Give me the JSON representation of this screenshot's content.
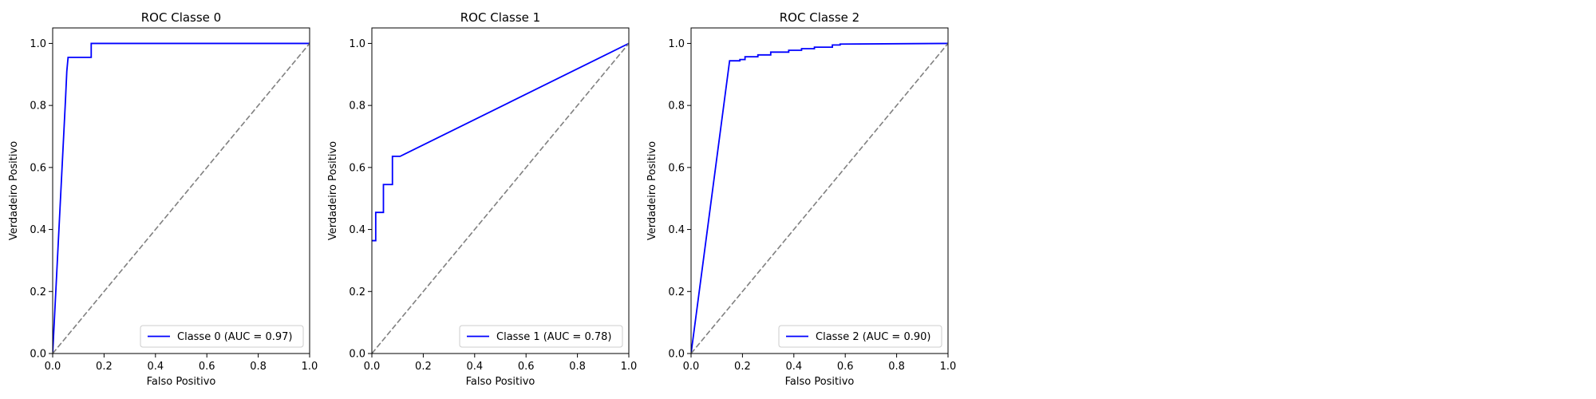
{
  "chart_data": [
    {
      "type": "line",
      "title": "ROC Classe 0",
      "xlabel": "Falso Positivo",
      "ylabel": "Verdadeiro Positivo",
      "xlim": [
        0,
        1
      ],
      "ylim": [
        0,
        1.05
      ],
      "xticks": [
        "0.0",
        "0.2",
        "0.4",
        "0.6",
        "0.8",
        "1.0"
      ],
      "yticks": [
        "0.0",
        "0.2",
        "0.4",
        "0.6",
        "0.8",
        "1.0"
      ],
      "grid": false,
      "legend_position": "lower-right",
      "series": [
        {
          "name": "Classe 0 (AUC = 0.97)",
          "color": "#0000ff",
          "style": "solid",
          "x": [
            0.0,
            0.05,
            0.05,
            0.055,
            0.055,
            0.06,
            0.06,
            0.15,
            0.15,
            1.0
          ],
          "y": [
            0.0,
            0.82,
            0.82,
            0.91,
            0.91,
            0.955,
            0.955,
            0.955,
            1.0,
            1.0
          ]
        },
        {
          "name": "",
          "color": "#808080",
          "style": "dashed",
          "x": [
            0.0,
            1.0
          ],
          "y": [
            0.0,
            1.0
          ]
        }
      ]
    },
    {
      "type": "line",
      "title": "ROC Classe 1",
      "xlabel": "Falso Positivo",
      "ylabel": "Verdadeiro Positivo",
      "xlim": [
        0,
        1
      ],
      "ylim": [
        0,
        1.05
      ],
      "xticks": [
        "0.0",
        "0.2",
        "0.4",
        "0.6",
        "0.8",
        "1.0"
      ],
      "yticks": [
        "0.0",
        "0.2",
        "0.4",
        "0.6",
        "0.8",
        "1.0"
      ],
      "grid": false,
      "legend_position": "lower-right",
      "series": [
        {
          "name": "Classe 1 (AUC = 0.78)",
          "color": "#0000ff",
          "style": "solid",
          "x": [
            0.0,
            0.015,
            0.015,
            0.045,
            0.045,
            0.08,
            0.08,
            0.11,
            1.0
          ],
          "y": [
            0.364,
            0.364,
            0.455,
            0.455,
            0.545,
            0.545,
            0.636,
            0.636,
            1.0
          ]
        },
        {
          "name": "",
          "color": "#808080",
          "style": "dashed",
          "x": [
            0.0,
            1.0
          ],
          "y": [
            0.0,
            1.0
          ]
        }
      ]
    },
    {
      "type": "line",
      "title": "ROC Classe 2",
      "xlabel": "Falso Positivo",
      "ylabel": "Verdadeiro Positivo",
      "xlim": [
        0,
        1
      ],
      "ylim": [
        0,
        1.05
      ],
      "xticks": [
        "0.0",
        "0.2",
        "0.4",
        "0.6",
        "0.8",
        "1.0"
      ],
      "yticks": [
        "0.0",
        "0.2",
        "0.4",
        "0.6",
        "0.8",
        "1.0"
      ],
      "grid": false,
      "legend_position": "lower-right",
      "series": [
        {
          "name": "Classe 2 (AUC = 0.90)",
          "color": "#0000ff",
          "style": "solid",
          "x": [
            0.0,
            0.15,
            0.15,
            0.19,
            0.19,
            0.21,
            0.21,
            0.26,
            0.26,
            0.31,
            0.31,
            0.38,
            0.38,
            0.43,
            0.43,
            0.48,
            0.48,
            0.55,
            0.55,
            0.58,
            0.58,
            1.0
          ],
          "y": [
            0.0,
            0.944,
            0.944,
            0.944,
            0.948,
            0.948,
            0.957,
            0.957,
            0.963,
            0.963,
            0.972,
            0.972,
            0.978,
            0.978,
            0.983,
            0.983,
            0.988,
            0.988,
            0.995,
            0.995,
            0.998,
            1.0
          ]
        },
        {
          "name": "",
          "color": "#808080",
          "style": "dashed",
          "x": [
            0.0,
            1.0
          ],
          "y": [
            0.0,
            1.0
          ]
        }
      ]
    }
  ]
}
